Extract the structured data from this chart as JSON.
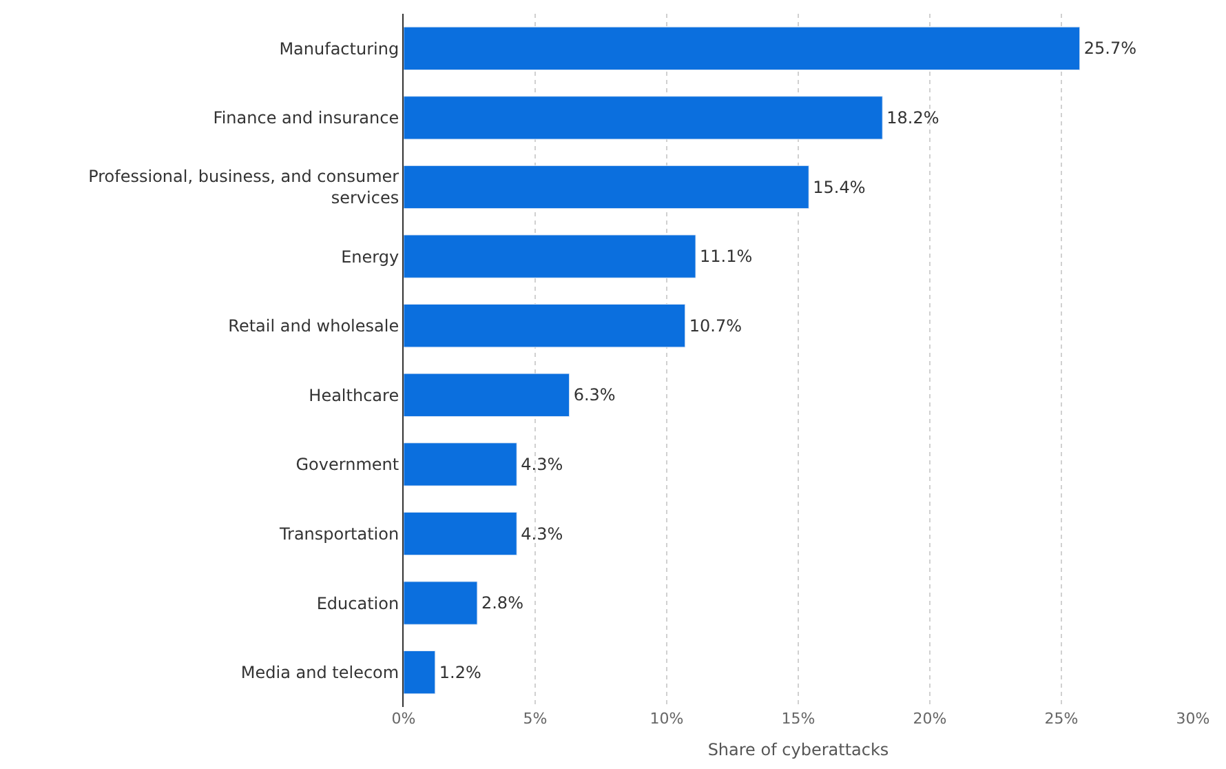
{
  "chart_data": {
    "type": "bar",
    "orientation": "horizontal",
    "xlabel": "Share of cyberattacks",
    "categories": [
      "Manufacturing",
      "Finance and insurance",
      "Professional, business, and consumer services",
      "Energy",
      "Retail and wholesale",
      "Healthcare",
      "Government",
      "Transportation",
      "Education",
      "Media and telecom"
    ],
    "values": [
      25.7,
      18.2,
      15.4,
      11.1,
      10.7,
      6.3,
      4.3,
      4.3,
      2.8,
      1.2
    ],
    "value_labels": [
      "25.7%",
      "18.2%",
      "15.4%",
      "11.1%",
      "10.7%",
      "6.3%",
      "4.3%",
      "4.3%",
      "2.8%",
      "1.2%"
    ],
    "color": "#0b6fde",
    "xlim": [
      0,
      30
    ],
    "xticks": [
      {
        "value": 0,
        "label": "0%"
      },
      {
        "value": 5,
        "label": "5%"
      },
      {
        "value": 10,
        "label": "10%"
      },
      {
        "value": 15,
        "label": "15%"
      },
      {
        "value": 20,
        "label": "20%"
      },
      {
        "value": 25,
        "label": "25%"
      },
      {
        "value": 30,
        "label": "30%"
      }
    ],
    "grid": "x"
  }
}
